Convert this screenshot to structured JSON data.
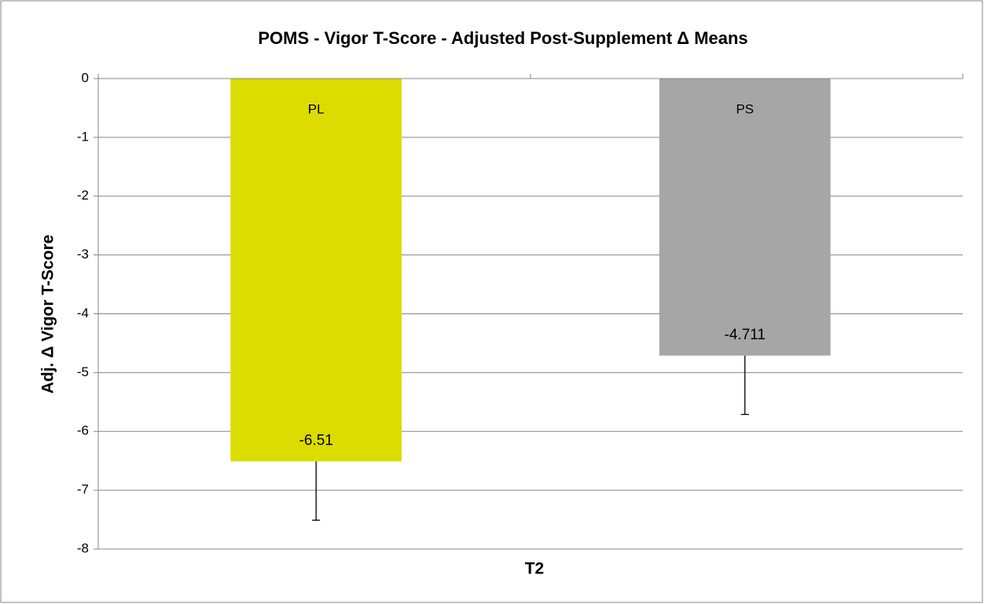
{
  "chart_data": {
    "type": "bar",
    "title": "POMS - Vigor T-Score - Adjusted Post-Supplement Δ Means",
    "y_label": "Adj. Δ Vigor T-Score",
    "x_label": "T2",
    "categories": [
      "T2"
    ],
    "series": [
      {
        "name": "PL",
        "color": "#dcdc00",
        "values": [
          -6.51
        ],
        "errors": [
          1
        ]
      },
      {
        "name": "PS",
        "color": "#a6a6a6",
        "values": [
          -4.711
        ],
        "errors": [
          1
        ]
      }
    ],
    "ylim": [
      -8,
      0
    ],
    "yticks": [
      0,
      -1,
      -2,
      -3,
      -4,
      -5,
      -6,
      -7,
      -8
    ],
    "grid": true
  }
}
